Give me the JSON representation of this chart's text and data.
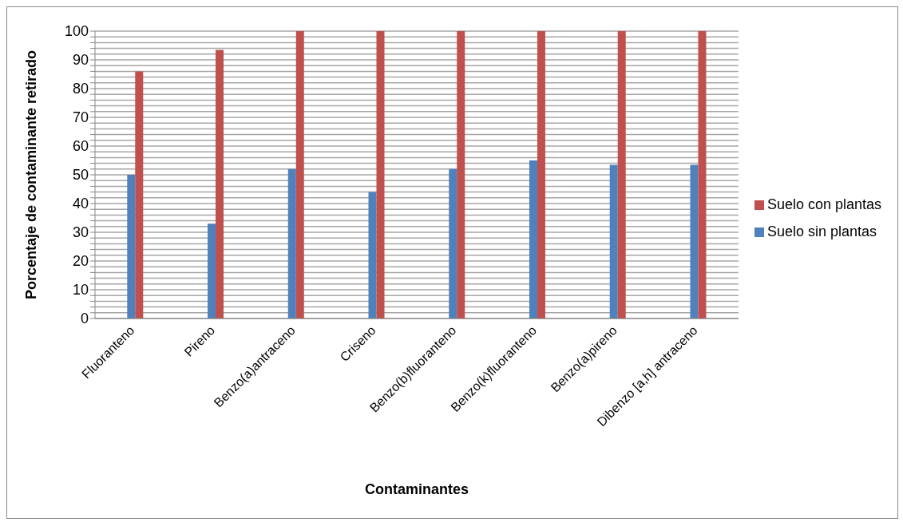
{
  "chart_data": {
    "type": "bar",
    "xlabel": "Contaminantes",
    "ylabel": "Porcentaje de contaminante retirado",
    "categories": [
      "Fluoranteno",
      "Pireno",
      "Benzo(a)antraceno",
      "Criseno",
      "Benzo(b)fluoranteno",
      "Benzo(k)fluoranteno",
      "Benzo(a)pireno",
      "Dibenzo [a,h] antraceno"
    ],
    "series": [
      {
        "name": "Suelo sin plantas",
        "color": "#4f81bd",
        "values": [
          50,
          33,
          52,
          44,
          52,
          55,
          53.5,
          53.5
        ]
      },
      {
        "name": "Suelo con plantas",
        "color": "#c0504d",
        "values": [
          86,
          93.5,
          100,
          100,
          100,
          100,
          100,
          100
        ]
      }
    ],
    "ylim": [
      0,
      100
    ],
    "yticks": [
      0,
      {
        "value": 2,
        "label": null
      },
      {
        "value": 4,
        "label": null
      },
      {
        "value": 6,
        "label": null
      },
      {
        "value": 8,
        "label": null
      },
      10,
      {
        "value": 12,
        "label": null
      },
      {
        "value": 14,
        "label": null
      },
      {
        "value": 16,
        "label": null
      },
      {
        "value": 18,
        "label": null
      },
      20,
      {
        "value": 22,
        "label": null
      },
      {
        "value": 24,
        "label": null
      },
      {
        "value": 26,
        "label": null
      },
      {
        "value": 28,
        "label": null
      },
      30,
      {
        "value": 32,
        "label": null
      },
      {
        "value": 34,
        "label": null
      },
      {
        "value": 36,
        "label": null
      },
      {
        "value": 38,
        "label": null
      },
      40,
      {
        "value": 42,
        "label": null
      },
      {
        "value": 44,
        "label": null
      },
      {
        "value": 46,
        "label": null
      },
      {
        "value": 48,
        "label": null
      },
      50,
      {
        "value": 52,
        "label": null
      },
      {
        "value": 54,
        "label": null
      },
      {
        "value": 56,
        "label": null
      },
      {
        "value": 58,
        "label": null
      },
      60,
      {
        "value": 62,
        "label": null
      },
      {
        "value": 64,
        "label": null
      },
      {
        "value": 66,
        "label": null
      },
      {
        "value": 68,
        "label": null
      },
      70,
      {
        "value": 72,
        "label": null
      },
      {
        "value": 74,
        "label": null
      },
      {
        "value": 76,
        "label": null
      },
      {
        "value": 78,
        "label": null
      },
      80,
      {
        "value": 82,
        "label": null
      },
      {
        "value": 84,
        "label": null
      },
      {
        "value": 86,
        "label": null
      },
      {
        "value": 88,
        "label": null
      },
      90,
      {
        "value": 92,
        "label": null
      },
      {
        "value": 94,
        "label": null
      },
      {
        "value": 96,
        "label": null
      },
      {
        "value": 98,
        "label": null
      },
      100
    ],
    "grid": "y",
    "legend": "right"
  }
}
